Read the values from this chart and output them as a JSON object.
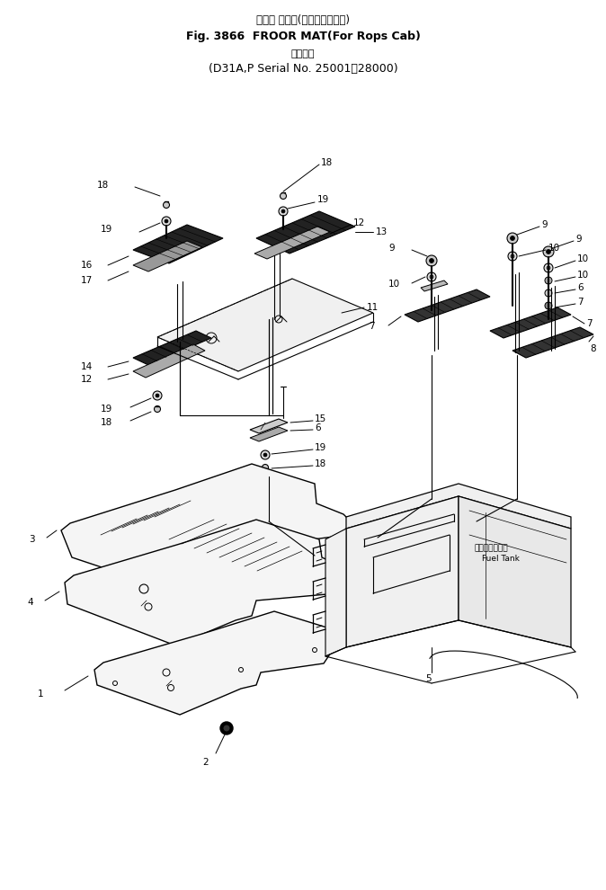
{
  "title_line1": "フロア マット(ロプスキャブ用)",
  "title_line2": "Fig. 3866  FROOR MAT(For Rops Cab)",
  "title_line3": "適用号機",
  "title_line4": "(D31A,P Serial No. 25001～28000)",
  "bg_color": "#ffffff",
  "line_color": "#000000",
  "fig_width": 6.74,
  "fig_height": 9.9,
  "dpi": 100
}
